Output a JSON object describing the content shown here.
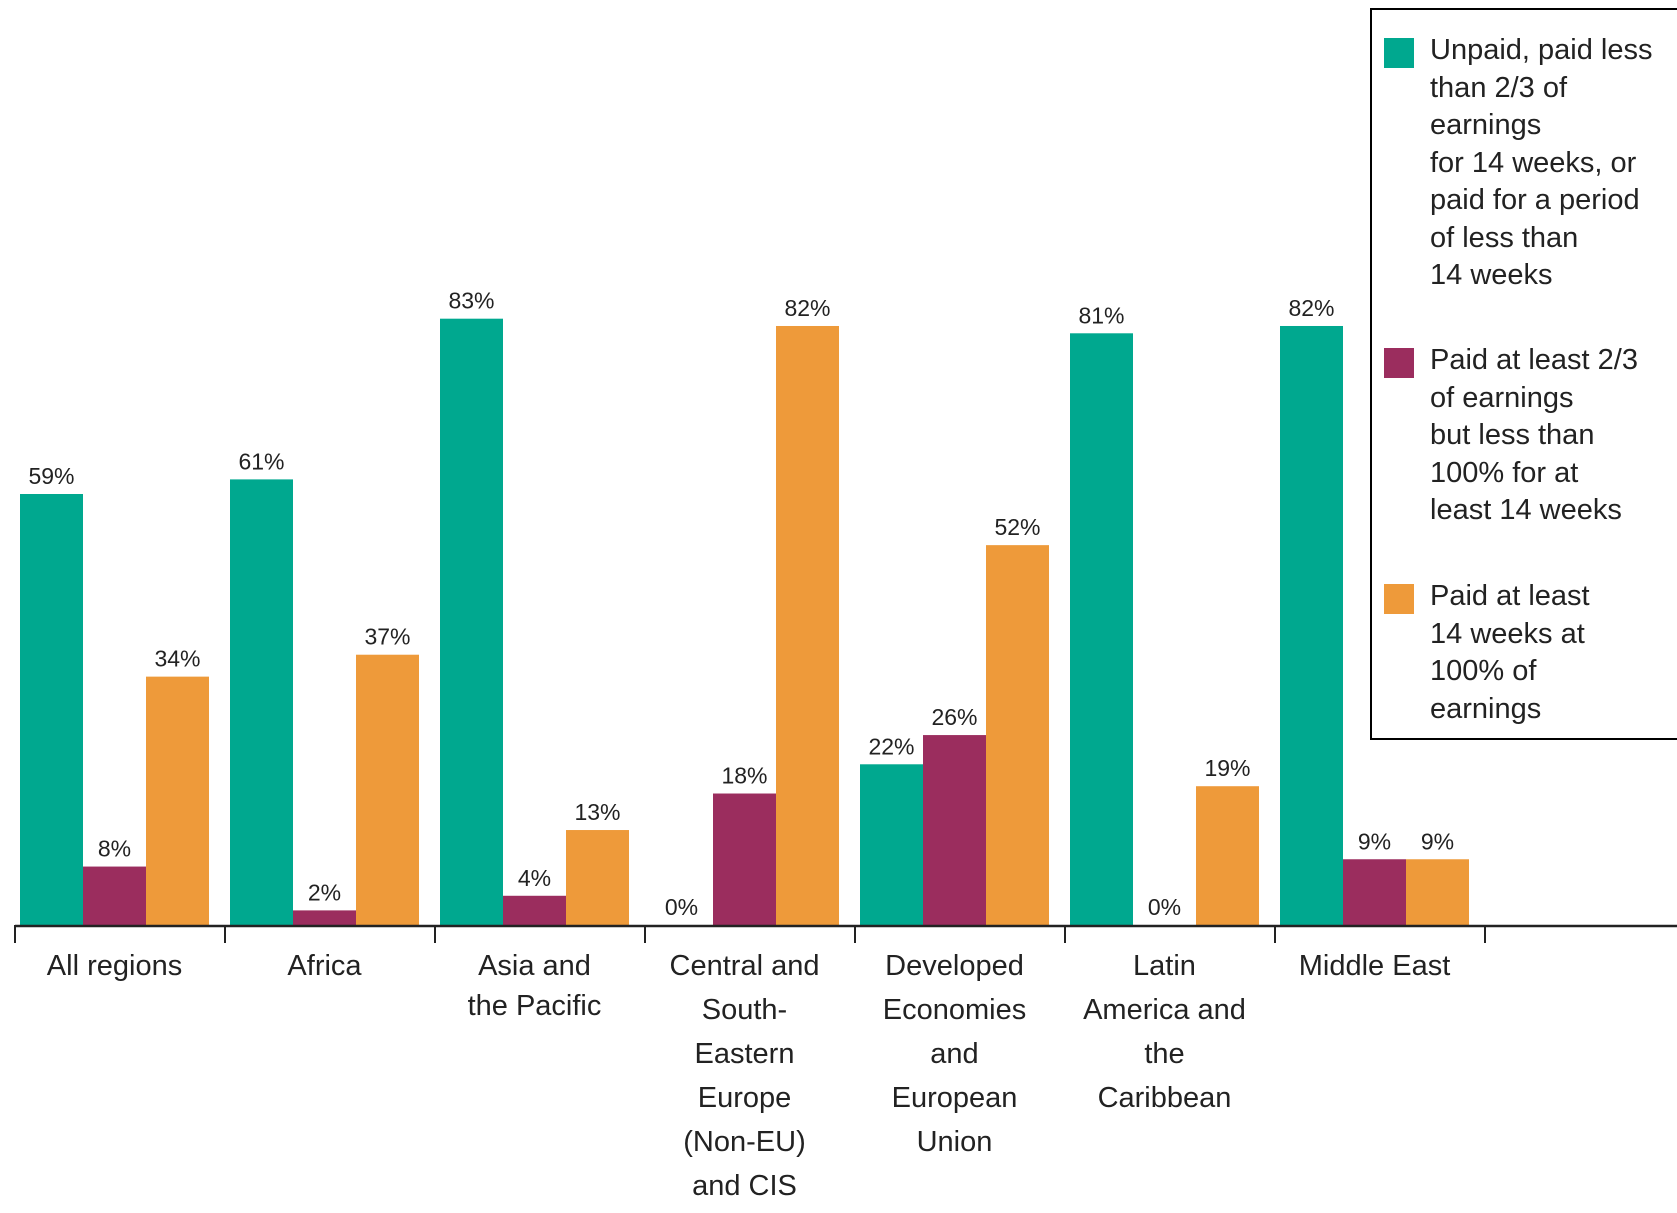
{
  "chart_data": {
    "type": "bar",
    "categories": [
      "All regions",
      "Africa",
      "Asia and\nthe Pacific",
      "Central and\nSouth-\nEastern\nEurope\n(Non-EU)\nand CIS",
      "Developed\nEconomies\nand\nEuropean\nUnion",
      "Latin\nAmerica and\nthe\nCaribbean",
      "Middle East"
    ],
    "series": [
      {
        "name": "Unpaid, paid less\nthan 2/3 of\nearnings\nfor 14 weeks, or\npaid for a period\nof less than\n14 weeks",
        "color": "#00a88f",
        "values": [
          59,
          61,
          83,
          0,
          22,
          81,
          82
        ],
        "labels": [
          "59%",
          "61%",
          "83%",
          "0%",
          "22%",
          "81%",
          "82%"
        ]
      },
      {
        "name": "Paid at least 2/3\nof earnings\nbut less than\n100% for at\nleast 14 weeks",
        "color": "#9b2d5e",
        "values": [
          8,
          2,
          4,
          18,
          26,
          0,
          9
        ],
        "labels": [
          "8%",
          "2%",
          "4%",
          "18%",
          "26%",
          "0%",
          "9%"
        ]
      },
      {
        "name": "Paid at least\n14 weeks at\n100% of\nearnings",
        "color": "#ee9a3a",
        "values": [
          34,
          37,
          13,
          82,
          52,
          19,
          9
        ],
        "labels": [
          "34%",
          "37%",
          "13%",
          "82%",
          "52%",
          "19%",
          "9%"
        ]
      }
    ],
    "ylim": [
      0,
      100
    ],
    "grid": false,
    "legend_position": "top-right"
  }
}
